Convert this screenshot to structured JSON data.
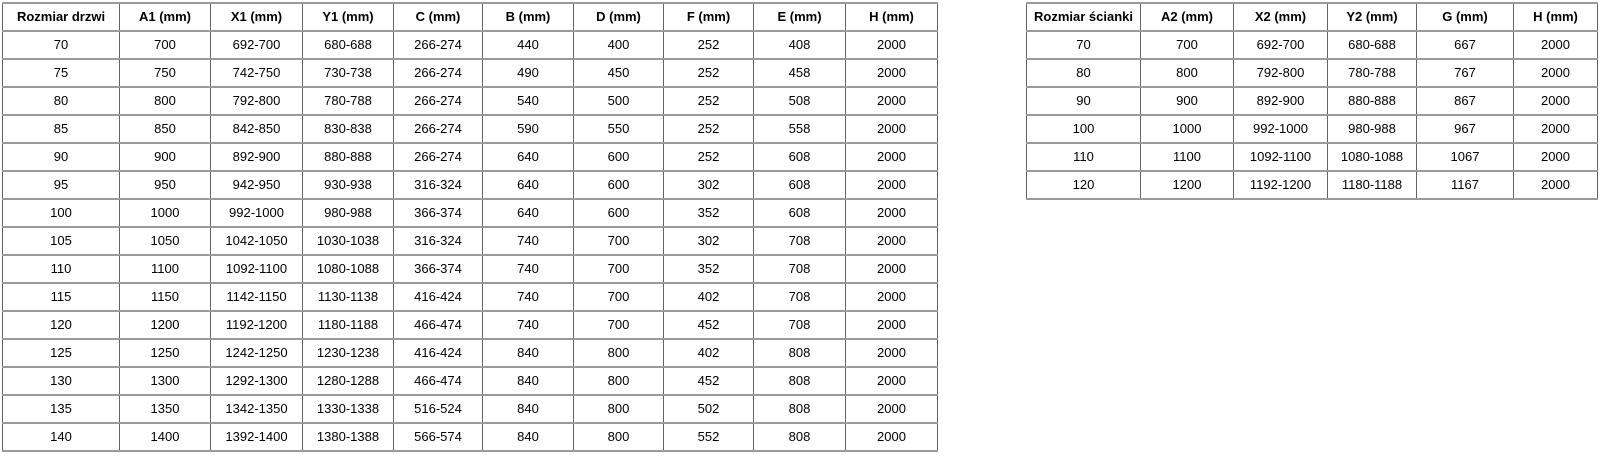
{
  "colors": {
    "background": "#ffffff",
    "border_vertical": "#636363",
    "border_horizontal": "#9a9a9a",
    "text": "#000000"
  },
  "tables": [
    {
      "name": "door-sizes-table",
      "headers": [
        "Rozmiar drzwi",
        "A1 (mm)",
        "X1 (mm)",
        "Y1 (mm)",
        "C (mm)",
        "B (mm)",
        "D (mm)",
        "F (mm)",
        "E (mm)",
        "H (mm)"
      ],
      "rows": [
        [
          "70",
          "700",
          "692-700",
          "680-688",
          "266-274",
          "440",
          "400",
          "252",
          "408",
          "2000"
        ],
        [
          "75",
          "750",
          "742-750",
          "730-738",
          "266-274",
          "490",
          "450",
          "252",
          "458",
          "2000"
        ],
        [
          "80",
          "800",
          "792-800",
          "780-788",
          "266-274",
          "540",
          "500",
          "252",
          "508",
          "2000"
        ],
        [
          "85",
          "850",
          "842-850",
          "830-838",
          "266-274",
          "590",
          "550",
          "252",
          "558",
          "2000"
        ],
        [
          "90",
          "900",
          "892-900",
          "880-888",
          "266-274",
          "640",
          "600",
          "252",
          "608",
          "2000"
        ],
        [
          "95",
          "950",
          "942-950",
          "930-938",
          "316-324",
          "640",
          "600",
          "302",
          "608",
          "2000"
        ],
        [
          "100",
          "1000",
          "992-1000",
          "980-988",
          "366-374",
          "640",
          "600",
          "352",
          "608",
          "2000"
        ],
        [
          "105",
          "1050",
          "1042-1050",
          "1030-1038",
          "316-324",
          "740",
          "700",
          "302",
          "708",
          "2000"
        ],
        [
          "110",
          "1100",
          "1092-1100",
          "1080-1088",
          "366-374",
          "740",
          "700",
          "352",
          "708",
          "2000"
        ],
        [
          "115",
          "1150",
          "1142-1150",
          "1130-1138",
          "416-424",
          "740",
          "700",
          "402",
          "708",
          "2000"
        ],
        [
          "120",
          "1200",
          "1192-1200",
          "1180-1188",
          "466-474",
          "740",
          "700",
          "452",
          "708",
          "2000"
        ],
        [
          "125",
          "1250",
          "1242-1250",
          "1230-1238",
          "416-424",
          "840",
          "800",
          "402",
          "808",
          "2000"
        ],
        [
          "130",
          "1300",
          "1292-1300",
          "1280-1288",
          "466-474",
          "840",
          "800",
          "452",
          "808",
          "2000"
        ],
        [
          "135",
          "1350",
          "1342-1350",
          "1330-1338",
          "516-524",
          "840",
          "800",
          "502",
          "808",
          "2000"
        ],
        [
          "140",
          "1400",
          "1392-1400",
          "1380-1388",
          "566-574",
          "840",
          "800",
          "552",
          "808",
          "2000"
        ]
      ]
    },
    {
      "name": "wall-sizes-table",
      "headers": [
        "Rozmiar ścianki",
        "A2 (mm)",
        "X2 (mm)",
        "Y2 (mm)",
        "G (mm)",
        "H (mm)"
      ],
      "rows": [
        [
          "70",
          "700",
          "692-700",
          "680-688",
          "667",
          "2000"
        ],
        [
          "80",
          "800",
          "792-800",
          "780-788",
          "767",
          "2000"
        ],
        [
          "90",
          "900",
          "892-900",
          "880-888",
          "867",
          "2000"
        ],
        [
          "100",
          "1000",
          "992-1000",
          "980-988",
          "967",
          "2000"
        ],
        [
          "110",
          "1100",
          "1092-1100",
          "1080-1088",
          "1067",
          "2000"
        ],
        [
          "120",
          "1200",
          "1192-1200",
          "1180-1188",
          "1167",
          "2000"
        ]
      ]
    }
  ]
}
